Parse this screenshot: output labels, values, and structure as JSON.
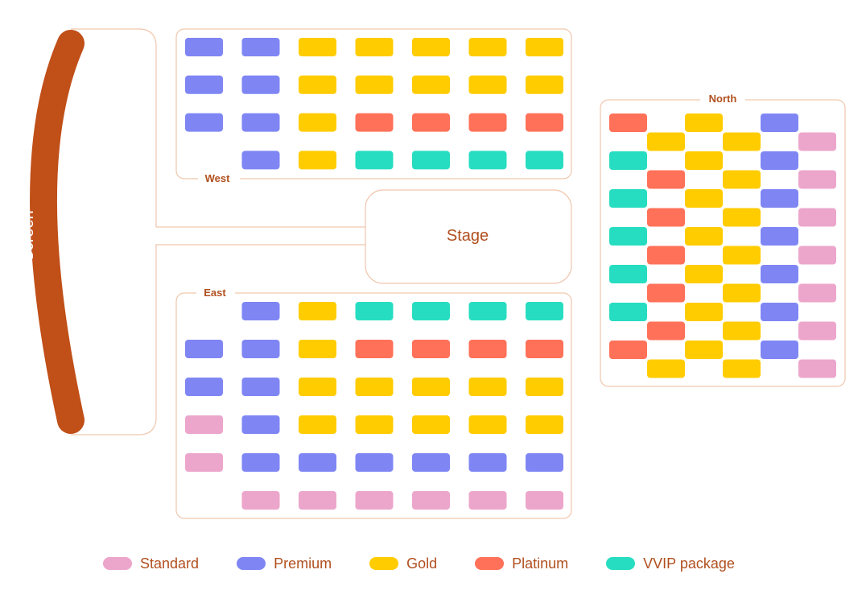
{
  "labels": {
    "screen": "Screen",
    "stage": "Stage",
    "west": "West",
    "east": "East",
    "north": "North"
  },
  "colors": {
    "S": "#eca6cb",
    "P": "#7f86f4",
    "G": "#ffcc00",
    "L": "#ff7159",
    "V": "#27ddc1",
    "outline": "#f0c6ad",
    "accent": "#c04f18"
  },
  "legend": [
    {
      "key": "S",
      "label": "Standard"
    },
    {
      "key": "P",
      "label": "Premium"
    },
    {
      "key": "G",
      "label": "Gold"
    },
    {
      "key": "L",
      "label": "Platinum"
    },
    {
      "key": "V",
      "label": "VVIP package"
    }
  ],
  "sections": {
    "west": [
      [
        "P",
        "P",
        "G",
        "G",
        "G",
        "G",
        "G"
      ],
      [
        "P",
        "P",
        "G",
        "G",
        "G",
        "G",
        "G"
      ],
      [
        "P",
        "P",
        "G",
        "L",
        "L",
        "L",
        "L"
      ],
      [
        "-",
        "P",
        "G",
        "V",
        "V",
        "V",
        "V"
      ]
    ],
    "east": [
      [
        "-",
        "P",
        "G",
        "V",
        "V",
        "V",
        "V"
      ],
      [
        "P",
        "P",
        "G",
        "L",
        "L",
        "L",
        "L"
      ],
      [
        "P",
        "P",
        "G",
        "G",
        "G",
        "G",
        "G"
      ],
      [
        "S",
        "P",
        "G",
        "G",
        "G",
        "G",
        "G"
      ],
      [
        "S",
        "P",
        "P",
        "P",
        "P",
        "P",
        "P"
      ],
      [
        "-",
        "S",
        "S",
        "S",
        "S",
        "S",
        "S"
      ]
    ],
    "north": [
      [
        "L",
        "G",
        "P"
      ],
      [
        "G",
        "G",
        "S"
      ],
      [
        "V",
        "G",
        "P"
      ],
      [
        "L",
        "G",
        "S"
      ],
      [
        "V",
        "G",
        "P"
      ],
      [
        "L",
        "G",
        "S"
      ],
      [
        "V",
        "G",
        "P"
      ],
      [
        "L",
        "G",
        "S"
      ],
      [
        "V",
        "G",
        "P"
      ],
      [
        "L",
        "G",
        "S"
      ],
      [
        "V",
        "G",
        "P"
      ],
      [
        "L",
        "G",
        "S"
      ],
      [
        "L",
        "G",
        "P"
      ],
      [
        "G",
        "G",
        "S"
      ]
    ]
  }
}
